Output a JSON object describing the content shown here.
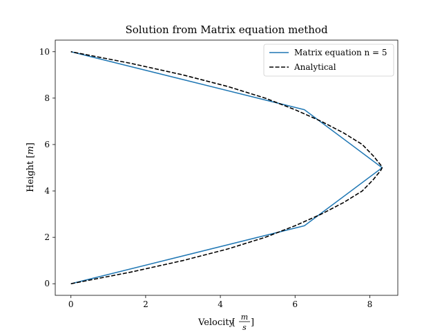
{
  "chart_data": {
    "type": "line",
    "title": "Solution from Matrix equation method",
    "xlabel": "Velocity",
    "xlabel_unit_num": "m",
    "xlabel_unit_den": "s",
    "ylabel": "Height",
    "ylabel_unit": "m",
    "xlim": [
      -0.42,
      8.75
    ],
    "ylim": [
      -0.5,
      10.5
    ],
    "xticks": [
      0,
      2,
      4,
      6,
      8
    ],
    "yticks": [
      0,
      2,
      4,
      6,
      8,
      10
    ],
    "grid": false,
    "legend_position": "top-right",
    "series": [
      {
        "name": "Matrix equation n = 5",
        "color": "#1f77b4",
        "style": "solid",
        "x": [
          0,
          6.25,
          8.33,
          6.25,
          0
        ],
        "y": [
          0,
          2.5,
          5.0,
          7.5,
          10
        ]
      },
      {
        "name": "Analytical",
        "color": "#000000",
        "style": "dashed",
        "x": [
          0,
          1.6,
          3.0,
          4.2,
          5.2,
          6.0,
          6.7,
          7.3,
          7.8,
          8.1,
          8.3,
          8.33,
          8.3,
          8.1,
          7.8,
          7.3,
          6.7,
          6.0,
          5.2,
          4.2,
          3.0,
          1.6,
          0
        ],
        "y": [
          0,
          0.5,
          1.0,
          1.5,
          2.0,
          2.5,
          3.0,
          3.5,
          4.0,
          4.5,
          4.9,
          5.0,
          5.1,
          5.5,
          6.0,
          6.5,
          7.0,
          7.5,
          8.0,
          8.5,
          9.0,
          9.5,
          10
        ]
      }
    ]
  }
}
